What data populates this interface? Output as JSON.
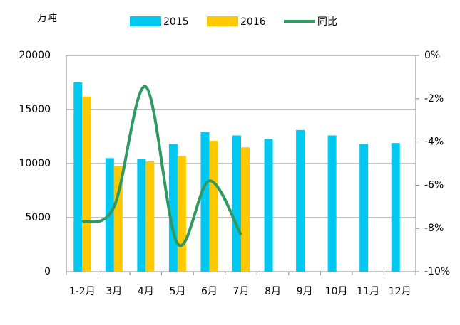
{
  "chart_data": {
    "type": "bar_line",
    "y_unit": "万吨",
    "categories": [
      "1-2月",
      "3月",
      "4月",
      "5月",
      "6月",
      "7月",
      "8月",
      "9月",
      "10月",
      "11月",
      "12月"
    ],
    "series": [
      {
        "name": "2015",
        "type": "bar",
        "color": "#00c8f0",
        "values": [
          17500,
          10500,
          10400,
          11800,
          12900,
          12600,
          12300,
          13100,
          12600,
          11800,
          11900
        ]
      },
      {
        "name": "2016",
        "type": "bar",
        "color": "#ffc800",
        "values": [
          16200,
          9800,
          10200,
          10700,
          12100,
          11500,
          null,
          null,
          null,
          null,
          null
        ]
      },
      {
        "name": "同比",
        "type": "line",
        "axis": "y2",
        "color": "#2e9960",
        "values": [
          -7.7,
          -7.0,
          -1.45,
          -8.7,
          -5.8,
          -8.3,
          null,
          null,
          null,
          null,
          null
        ]
      }
    ],
    "ylim": [
      0,
      20000
    ],
    "yticks": [
      0,
      5000,
      10000,
      15000,
      20000
    ],
    "y2lim": [
      -10,
      0
    ],
    "y2ticks": [
      {
        "value": 0,
        "label": "0%"
      },
      {
        "value": -2,
        "label": "-2%"
      },
      {
        "value": -4,
        "label": "-4%"
      },
      {
        "value": -6,
        "label": "-6%"
      },
      {
        "value": -8,
        "label": "-8%"
      },
      {
        "value": -10,
        "label": "-10%"
      }
    ],
    "grid": true
  }
}
